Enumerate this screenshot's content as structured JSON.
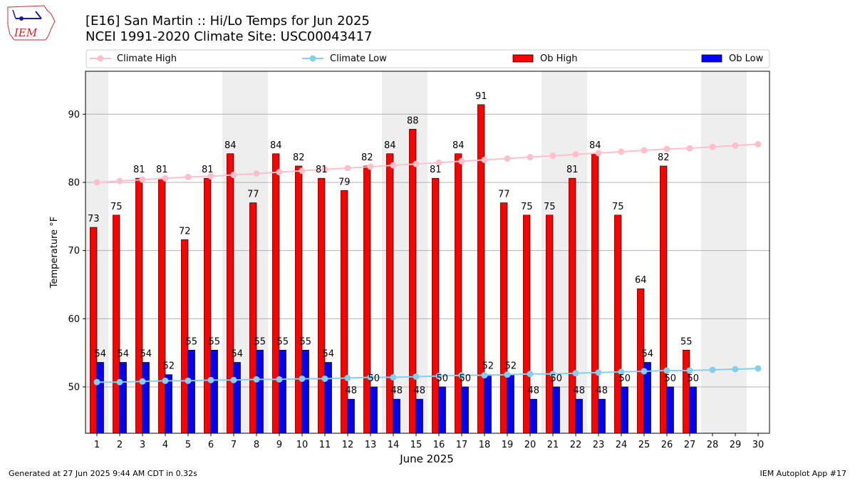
{
  "header": {
    "logo_text": "IEM",
    "title_line1": "[E16] San Martin :: Hi/Lo Temps for Jun 2025",
    "title_line2": "NCEI 1991-2020 Climate Site: USC00043417"
  },
  "footer": {
    "left": "Generated at 27 Jun 2025 9:44 AM CDT in 0.32s",
    "right": "IEM Autoplot App #17"
  },
  "chart_data": {
    "type": "bar",
    "xlabel": "June 2025",
    "ylabel": "Temperature °F",
    "ylim": [
      43.2,
      96.3
    ],
    "yticks": [
      50,
      60,
      70,
      80,
      90
    ],
    "grid": true,
    "legend_placement": "top",
    "categories": [
      "1",
      "2",
      "3",
      "4",
      "5",
      "6",
      "7",
      "8",
      "9",
      "10",
      "11",
      "12",
      "13",
      "14",
      "15",
      "16",
      "17",
      "18",
      "19",
      "20",
      "21",
      "22",
      "23",
      "24",
      "25",
      "26",
      "27",
      "28",
      "29",
      "30"
    ],
    "weekend_days": [
      1,
      7,
      8,
      14,
      15,
      21,
      22,
      28,
      29
    ],
    "series": [
      {
        "name": "Ob High",
        "kind": "bar",
        "color": "#ff0000",
        "values": [
          73,
          75,
          81,
          81,
          72,
          81,
          84,
          77,
          84,
          82,
          81,
          79,
          82,
          84,
          88,
          81,
          84,
          91,
          77,
          75,
          75,
          81,
          84,
          75,
          64,
          82,
          55,
          null,
          null,
          null
        ],
        "plotted": [
          73.4,
          75.2,
          80.6,
          80.6,
          71.6,
          80.6,
          84.2,
          77.0,
          84.2,
          82.4,
          80.6,
          78.8,
          82.4,
          84.2,
          87.8,
          80.6,
          84.2,
          91.4,
          77.0,
          75.2,
          75.2,
          80.6,
          84.2,
          75.2,
          64.4,
          82.4,
          55.4,
          null,
          null,
          null
        ]
      },
      {
        "name": "Ob Low",
        "kind": "bar",
        "color": "#0000ff",
        "values": [
          54,
          54,
          54,
          52,
          55,
          55,
          54,
          55,
          55,
          55,
          54,
          48,
          50,
          48,
          48,
          50,
          50,
          52,
          52,
          48,
          50,
          48,
          48,
          50,
          54,
          50,
          50,
          null,
          null,
          null
        ],
        "plotted": [
          53.6,
          53.6,
          53.6,
          51.8,
          55.4,
          55.4,
          53.6,
          55.4,
          55.4,
          55.4,
          53.6,
          48.2,
          50.0,
          48.2,
          48.2,
          50.0,
          50.0,
          51.8,
          51.8,
          48.2,
          50.0,
          48.2,
          48.2,
          50.0,
          53.6,
          50.0,
          50.0,
          null,
          null,
          null
        ]
      },
      {
        "name": "Climate High",
        "kind": "line",
        "color": "#ffc0cb",
        "values": [
          80.0,
          80.2,
          80.4,
          80.6,
          80.8,
          80.9,
          81.1,
          81.3,
          81.5,
          81.7,
          81.9,
          82.1,
          82.3,
          82.5,
          82.7,
          82.9,
          83.1,
          83.3,
          83.5,
          83.7,
          83.9,
          84.1,
          84.3,
          84.5,
          84.7,
          84.9,
          85.0,
          85.2,
          85.4,
          85.6
        ]
      },
      {
        "name": "Climate Low",
        "kind": "line",
        "color": "#87ceeb",
        "values": [
          50.7,
          50.7,
          50.8,
          50.9,
          50.9,
          51.0,
          51.0,
          51.1,
          51.1,
          51.2,
          51.2,
          51.3,
          51.4,
          51.4,
          51.5,
          51.6,
          51.7,
          51.7,
          51.8,
          51.9,
          51.9,
          52.0,
          52.1,
          52.2,
          52.3,
          52.4,
          52.4,
          52.5,
          52.6,
          52.7
        ]
      }
    ]
  }
}
